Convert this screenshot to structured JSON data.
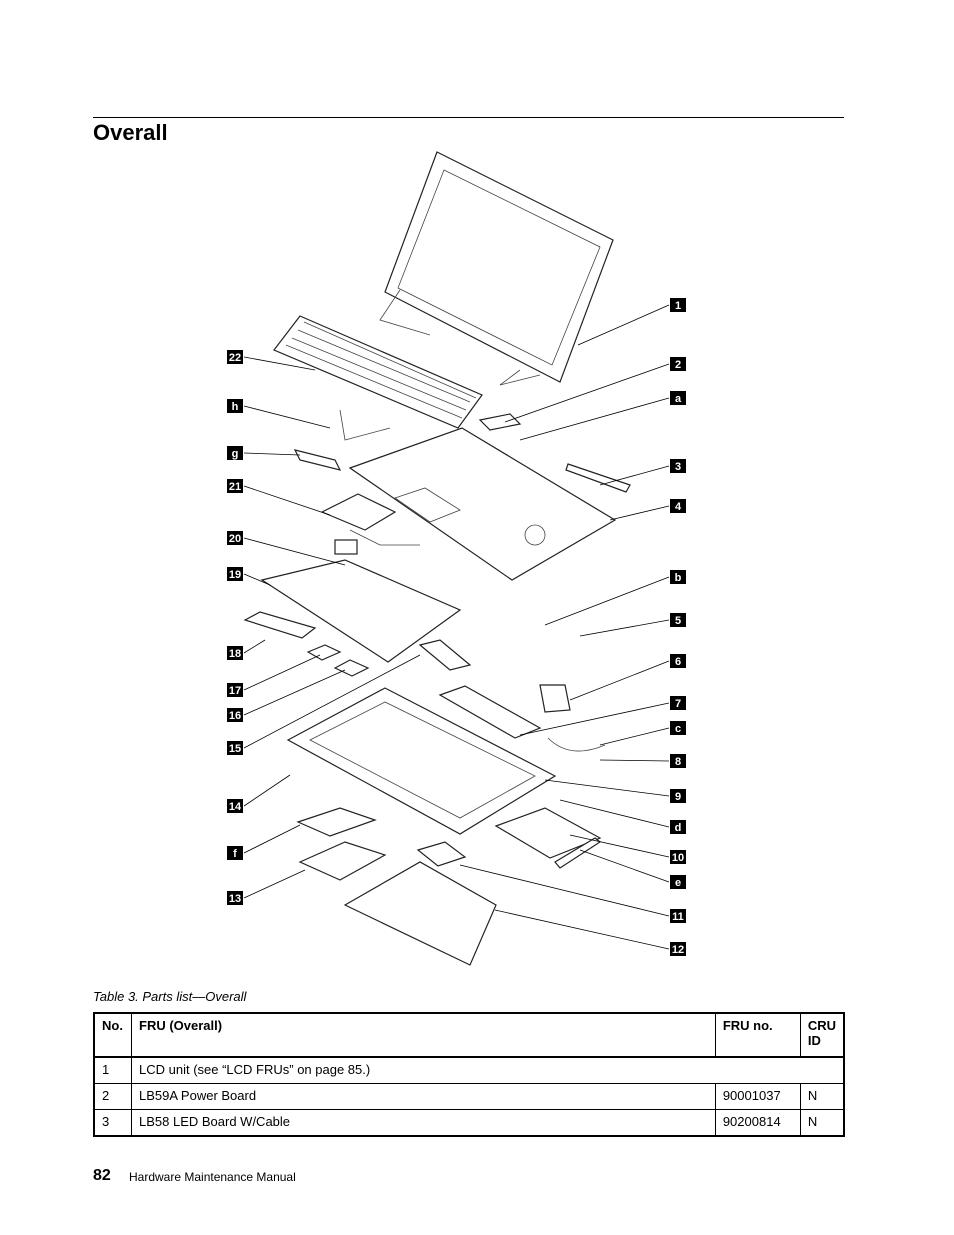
{
  "header": {
    "title": "Overall"
  },
  "figure": {
    "callouts_left": [
      "22",
      "h",
      "g",
      "21",
      "20",
      "19",
      "18",
      "17",
      "16",
      "15",
      "14",
      "f",
      "13"
    ],
    "callouts_right": [
      "1",
      "2",
      "a",
      "3",
      "4",
      "b",
      "5",
      "6",
      "7",
      "c",
      "8",
      "9",
      "d",
      "10",
      "e",
      "11",
      "12"
    ]
  },
  "table": {
    "caption": "Table 3.  Parts list—Overall",
    "header": [
      "No.",
      "FRU (Overall)",
      "FRU no.",
      "CRU ID"
    ],
    "rows": [
      [
        "1",
        "LCD unit (see “LCD FRUs” on page 85.)"
      ],
      [
        "2",
        "LB59A Power Board",
        "90001037",
        "N"
      ],
      [
        "3",
        "LB58 LED Board W/Cable",
        "90200814",
        "N"
      ]
    ]
  },
  "footer": {
    "page_number": "82",
    "title": "Hardware Maintenance Manual"
  }
}
